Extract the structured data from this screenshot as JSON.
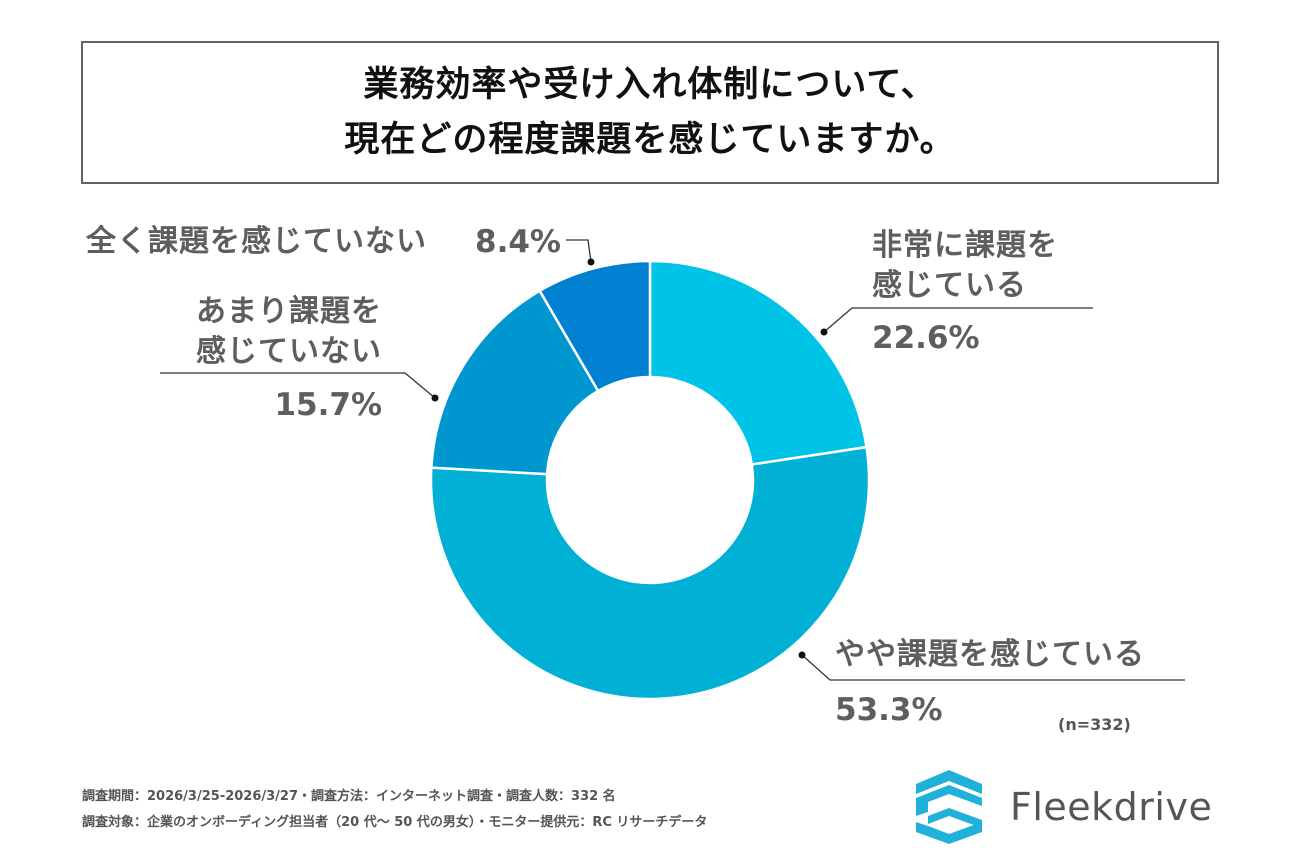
{
  "title": {
    "line1": "業務効率や受け入れ体制について、",
    "line2": "現在どの程度課題を感じていますか。"
  },
  "chart_data": {
    "type": "pie",
    "variant": "donut",
    "title": "業務効率や受け入れ体制について、現在どの程度課題を感じていますか。",
    "start_angle": "12 o'clock, clockwise",
    "slices": [
      {
        "label": "非常に課題を感じている",
        "label_lines": [
          "非常に課題を",
          "感じている"
        ],
        "value": 22.6,
        "display": "22.6%",
        "color": "#00c3e8"
      },
      {
        "label": "やや課題を感じている",
        "label_lines": [
          "やや課題を感じている"
        ],
        "value": 53.3,
        "display": "53.3%",
        "color": "#00b0d5"
      },
      {
        "label": "あまり課題を感じていない",
        "label_lines": [
          "あまり課題を",
          "感じていない"
        ],
        "value": 15.7,
        "display": "15.7%",
        "color": "#0097d1"
      },
      {
        "label": "全く課題を感じていない",
        "label_lines": [
          "全く課題を感じていない"
        ],
        "value": 8.4,
        "display": "8.4%",
        "color": "#0080d0"
      }
    ],
    "sample_note": "(n=332)"
  },
  "footer": {
    "line1": "調査期間：2026/3/25-2026/3/27・調査方法：インターネット調査・調査人数：332 名",
    "line2": "調査対象：企業のオンボーディング担当者（20 代～ 50 代の男女）・モニター提供元：RC リサーチデータ"
  },
  "logo": {
    "icon": "fleekdrive-logo-icon",
    "text": "Fleekdrive",
    "color": "#1fb1d9"
  }
}
